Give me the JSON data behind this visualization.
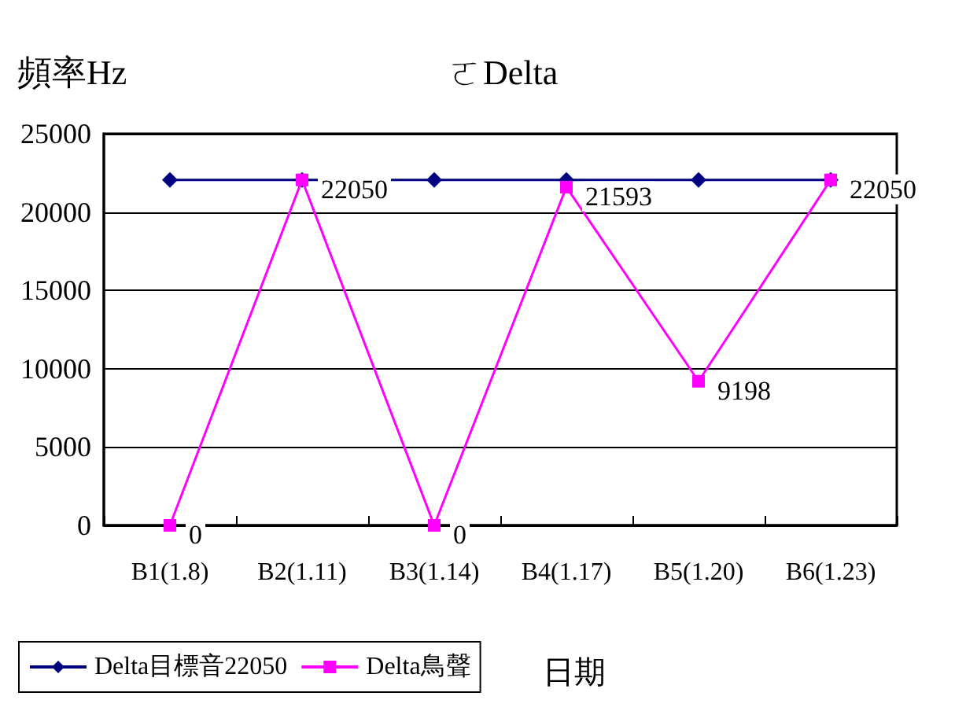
{
  "chart_data": {
    "type": "line",
    "title": "ㄛDelta",
    "ylabel": "頻率Hz",
    "xlabel": "日期",
    "categories": [
      "B1(1.8)",
      "B2(1.11)",
      "B3(1.14)",
      "B4(1.17)",
      "B5(1.20)",
      "B6(1.23)"
    ],
    "series": [
      {
        "name": "Delta目標音22050",
        "color": "#000080",
        "marker": "diamond",
        "values": [
          22050,
          22050,
          22050,
          22050,
          22050,
          22050
        ]
      },
      {
        "name": "Delta鳥聲",
        "color": "#ff00ff",
        "marker": "square",
        "values": [
          0,
          22050,
          0,
          21593,
          9198,
          22050
        ],
        "value_labels": [
          "0",
          "22050",
          "0",
          "21593",
          "9198",
          "22050"
        ]
      }
    ],
    "ylim": [
      0,
      25000
    ],
    "yticks": [
      0,
      5000,
      10000,
      15000,
      20000,
      25000
    ],
    "grid": "y",
    "legend": "bottom left",
    "line_style": "solid"
  }
}
